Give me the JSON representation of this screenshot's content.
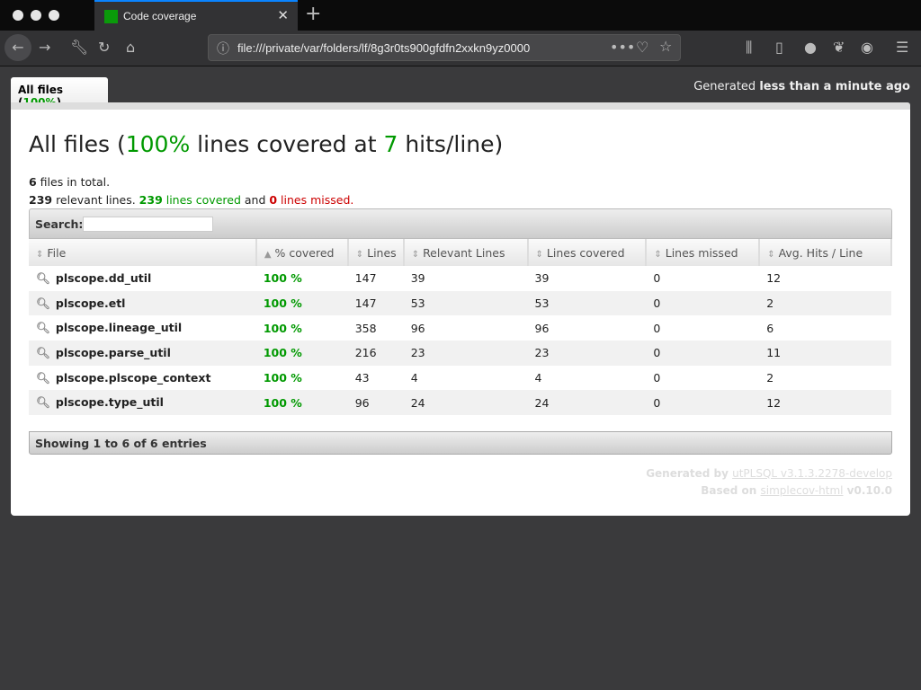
{
  "browser": {
    "tab_title": "Code coverage",
    "url": "file:///private/var/folders/lf/8g3r0ts900gfdfn2xxkn9yz0000"
  },
  "page": {
    "tab_label": "All files",
    "tab_percent": "100%",
    "generated_prefix": "Generated",
    "generated_time": "less than a minute ago",
    "title_prefix": "All files (",
    "title_percent": "100%",
    "title_mid": " lines covered at ",
    "title_hits": "7",
    "title_suffix": " hits/line)",
    "files_count": "6",
    "files_text": " files in total.",
    "relevant": "239",
    "relevant_text": " relevant lines. ",
    "covered": "239 lines covered",
    "and": " and ",
    "missed": "0 lines missed."
  },
  "search": {
    "label": "Search:",
    "value": ""
  },
  "table": {
    "headers": [
      "File",
      "% covered",
      "Lines",
      "Relevant Lines",
      "Lines covered",
      "Lines missed",
      "Avg. Hits / Line"
    ],
    "rows": [
      [
        "plscope.dd_util",
        "100 %",
        "147",
        "39",
        "39",
        "0",
        "12"
      ],
      [
        "plscope.etl",
        "100 %",
        "147",
        "53",
        "53",
        "0",
        "2"
      ],
      [
        "plscope.lineage_util",
        "100 %",
        "358",
        "96",
        "96",
        "0",
        "6"
      ],
      [
        "plscope.parse_util",
        "100 %",
        "216",
        "23",
        "23",
        "0",
        "11"
      ],
      [
        "plscope.plscope_context",
        "100 %",
        "43",
        "4",
        "4",
        "0",
        "2"
      ],
      [
        "plscope.type_util",
        "100 %",
        "96",
        "24",
        "24",
        "0",
        "12"
      ]
    ]
  },
  "footer": {
    "showing": "Showing 1 to 6 of 6 entries",
    "generated_by": "Generated by ",
    "utplsql": "utPLSQL v3.1.3.2278-develop",
    "based_on": "Based on ",
    "simplecov": "simplecov-html",
    "version": " v0.10.0"
  }
}
